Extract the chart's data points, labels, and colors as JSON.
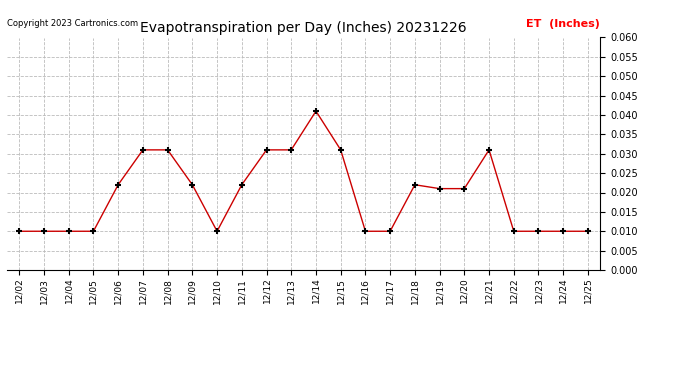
{
  "title": "Evapotranspiration per Day (Inches) 20231226",
  "copyright": "Copyright 2023 Cartronics.com",
  "legend_label": "ET  (Inches)",
  "legend_color": "#ff0000",
  "line_color": "#cc0000",
  "marker_color": "#000000",
  "background_color": "#ffffff",
  "grid_color": "#bbbbbb",
  "ylim": [
    0.0,
    0.06
  ],
  "yticks": [
    0.0,
    0.005,
    0.01,
    0.015,
    0.02,
    0.025,
    0.03,
    0.035,
    0.04,
    0.045,
    0.05,
    0.055,
    0.06
  ],
  "dates": [
    "12/02",
    "12/03",
    "12/04",
    "12/05",
    "12/06",
    "12/07",
    "12/08",
    "12/09",
    "12/10",
    "12/11",
    "12/12",
    "12/13",
    "12/14",
    "12/15",
    "12/16",
    "12/17",
    "12/18",
    "12/19",
    "12/20",
    "12/21",
    "12/22",
    "12/23",
    "12/24",
    "12/25"
  ],
  "values": [
    0.01,
    0.01,
    0.01,
    0.01,
    0.022,
    0.031,
    0.031,
    0.022,
    0.01,
    0.022,
    0.031,
    0.031,
    0.041,
    0.031,
    0.01,
    0.01,
    0.022,
    0.021,
    0.021,
    0.031,
    0.01,
    0.01,
    0.01,
    0.01
  ]
}
